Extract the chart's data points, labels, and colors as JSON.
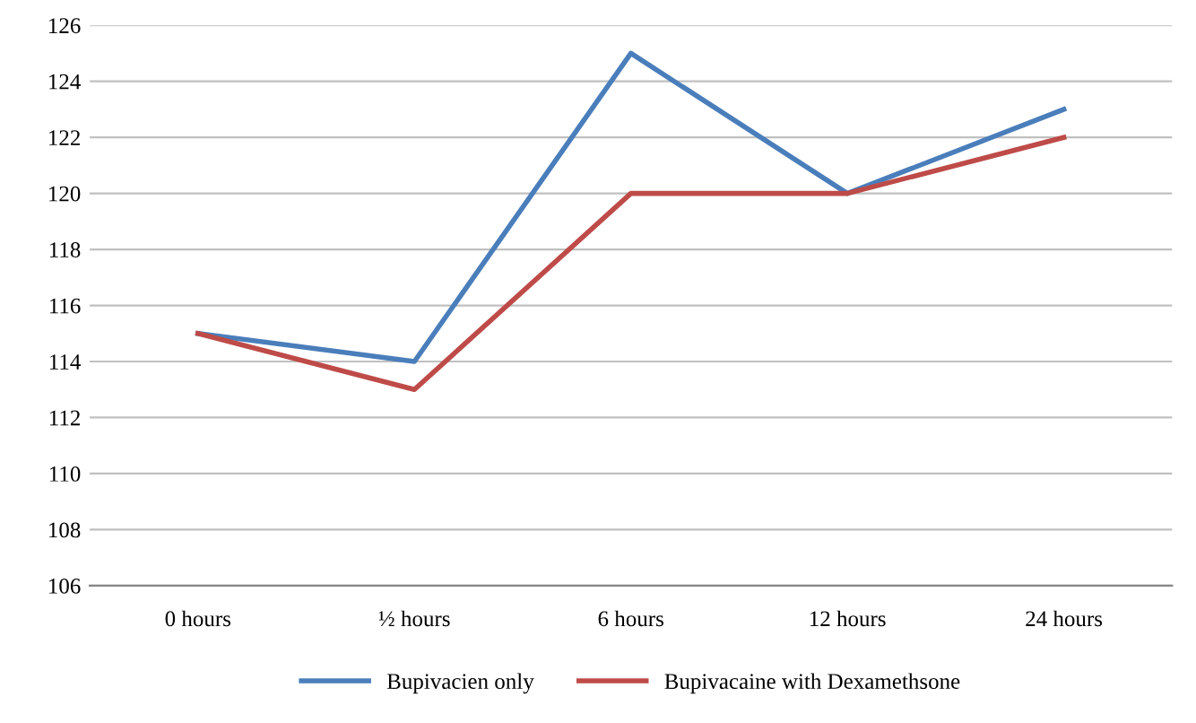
{
  "chart_data": {
    "type": "line",
    "categories": [
      "0 hours",
      "½ hours",
      "6 hours",
      "12 hours",
      "24 hours"
    ],
    "series": [
      {
        "name": "Bupivacien only",
        "color": "#4a7ebb",
        "values": [
          115,
          114,
          125,
          120,
          123
        ]
      },
      {
        "name": "Bupivacaine with Dexamethsone",
        "color": "#be4b48",
        "values": [
          115,
          113,
          120,
          120,
          122
        ]
      }
    ],
    "ylim": [
      106,
      126
    ],
    "yticks": [
      106,
      108,
      110,
      112,
      114,
      116,
      118,
      120,
      122,
      124,
      126
    ],
    "grid": "y",
    "legend": "bottom",
    "marker": "none",
    "line_style": "solid"
  }
}
